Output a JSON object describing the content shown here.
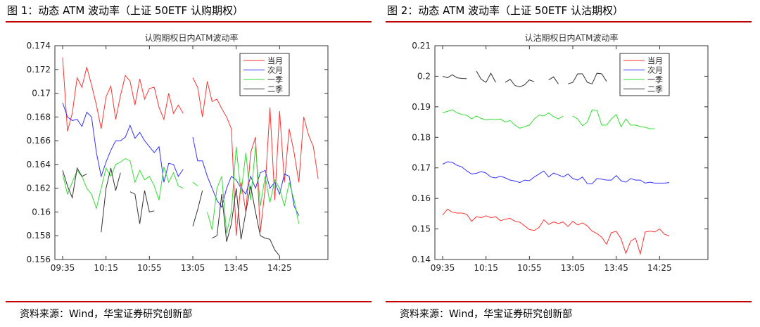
{
  "figures": [
    {
      "caption": "图 1：动态 ATM 波动率（上证 50ETF 认购期权）",
      "source": "资料来源：Wind，华宝证券研究创新部"
    },
    {
      "caption": "图 2：动态 ATM 波动率（上证 50ETF 认沽期权）",
      "source": "资料来源：Wind，华宝证券研究创新部"
    }
  ],
  "chart_data": [
    {
      "type": "line",
      "title": "认购期权日内ATM波动率",
      "xlabel": "",
      "ylabel": "",
      "x_ticks": [
        "09:35",
        "10:15",
        "10:55",
        "13:05",
        "13:45",
        "14:25"
      ],
      "x_tick_index": [
        0,
        9,
        18,
        27,
        36,
        45
      ],
      "x_count": 55,
      "ylim": [
        0.156,
        0.174
      ],
      "y_ticks": [
        0.156,
        0.158,
        0.16,
        0.162,
        0.164,
        0.166,
        0.168,
        0.17,
        0.172,
        0.174
      ],
      "y_tick_labels": [
        "0.156",
        "0.158",
        "0.16",
        "0.162",
        "0.164",
        "0.166",
        "0.168",
        "0.17",
        "0.172",
        "0.174"
      ],
      "legend_position": "top-right",
      "grid": false,
      "series": [
        {
          "name": "当月",
          "color": "#ff3333",
          "values": [
            0.173,
            0.1668,
            0.1683,
            0.1713,
            0.1705,
            0.1722,
            0.1707,
            0.169,
            0.167,
            0.1697,
            0.1706,
            0.1678,
            0.1698,
            0.1715,
            0.171,
            0.169,
            0.1712,
            0.1695,
            0.1704,
            0.1705,
            0.1688,
            0.1678,
            0.17,
            0.1683,
            0.169,
            0.1683,
            null,
            0.1713,
            0.1705,
            0.168,
            0.171,
            0.1693,
            0.1695,
            0.1687,
            0.168,
            0.167,
            0.158,
            0.1625,
            0.16,
            0.165,
            0.1663,
            0.1583,
            0.162,
            0.1688,
            0.161,
            0.1685,
            0.1625,
            0.167,
            0.165,
            0.1625,
            0.168,
            0.1665,
            0.1655,
            0.1628,
            null
          ]
        },
        {
          "name": "次月",
          "color": "#3333ff",
          "values": [
            0.1692,
            0.168,
            0.1677,
            0.1678,
            0.1672,
            0.1684,
            0.168,
            0.165,
            0.163,
            0.1642,
            0.1652,
            0.166,
            0.166,
            0.1663,
            0.1673,
            0.1662,
            0.1667,
            0.166,
            0.1655,
            0.165,
            0.1655,
            0.1625,
            0.1641,
            0.164,
            0.163,
            0.1636,
            null,
            0.1663,
            0.1643,
            0.1643,
            0.163,
            0.162,
            0.161,
            0.1604,
            0.162,
            0.163,
            0.1627,
            0.162,
            0.1615,
            0.163,
            0.162,
            0.1633,
            0.1635,
            0.162,
            0.1625,
            0.1615,
            0.1632,
            0.163,
            0.1605,
            0.1597,
            null,
            null,
            null,
            null,
            null
          ]
        },
        {
          "name": "一季",
          "color": "#33dd33",
          "values": [
            0.1632,
            0.1615,
            0.1625,
            0.1635,
            0.163,
            0.162,
            0.1615,
            0.1603,
            0.162,
            0.1637,
            0.163,
            0.164,
            0.1642,
            0.1645,
            0.1643,
            0.1625,
            0.1635,
            0.1627,
            0.163,
            0.1622,
            0.161,
            0.1638,
            0.1625,
            0.1633,
            0.1622,
            0.162,
            null,
            0.1625,
            0.1622,
            null,
            0.16,
            0.1585,
            0.162,
            0.163,
            0.1582,
            0.16,
            0.1655,
            0.1615,
            0.165,
            0.161,
            0.1655,
            0.1605,
            0.163,
            0.1608,
            0.1627,
            0.162,
            0.1605,
            0.1625,
            0.161,
            0.159,
            null,
            null,
            null,
            null,
            null
          ]
        },
        {
          "name": "二季",
          "color": "#333333",
          "values": [
            0.1635,
            0.1622,
            0.1612,
            0.1637,
            0.163,
            0.1632,
            null,
            null,
            0.1583,
            0.162,
            0.1637,
            0.1618,
            0.1633,
            null,
            0.1617,
            0.1615,
            0.159,
            0.1618,
            0.16,
            0.1601,
            null,
            null,
            null,
            null,
            null,
            null,
            null,
            0.1588,
            0.1602,
            0.1618,
            null,
            0.1578,
            0.158,
            0.1615,
            0.1575,
            0.159,
            0.162,
            0.1577,
            0.16,
            0.1622,
            0.16,
            0.158,
            0.1578,
            0.1577,
            0.1568,
            0.1563,
            null,
            null,
            null,
            null,
            null,
            null,
            null,
            null,
            null
          ]
        }
      ]
    },
    {
      "type": "line",
      "title": "认沽期权日内ATM波动率",
      "xlabel": "",
      "ylabel": "",
      "x_ticks": [
        "09:35",
        "10:15",
        "10:55",
        "13:05",
        "13:45",
        "14:25"
      ],
      "x_tick_index": [
        0,
        9,
        18,
        27,
        36,
        45
      ],
      "x_count": 55,
      "ylim": [
        0.14,
        0.21
      ],
      "y_ticks": [
        0.14,
        0.15,
        0.16,
        0.17,
        0.18,
        0.19,
        0.2,
        0.21
      ],
      "y_tick_labels": [
        "0.14",
        "0.15",
        "0.16",
        "0.17",
        "0.18",
        "0.19",
        "0.2",
        "0.21"
      ],
      "legend_position": "top-right",
      "grid": false,
      "series": [
        {
          "name": "当月",
          "color": "#ff3333",
          "values": [
            0.1545,
            0.1565,
            0.1555,
            0.1552,
            0.1552,
            0.1548,
            0.1525,
            0.154,
            0.1537,
            0.1543,
            0.1537,
            0.154,
            0.1527,
            0.1532,
            0.1535,
            0.1525,
            0.1522,
            0.151,
            0.1498,
            0.1495,
            0.1505,
            0.153,
            0.1515,
            0.1523,
            0.1518,
            0.1523,
            0.1508,
            0.1525,
            0.1513,
            0.152,
            0.151,
            0.1493,
            0.1485,
            0.1473,
            0.145,
            0.1488,
            0.1492,
            0.1468,
            0.142,
            0.146,
            0.147,
            0.1418,
            0.149,
            0.1493,
            0.149,
            0.15,
            0.1483,
            0.1477,
            null,
            null,
            null,
            null,
            null,
            null,
            null
          ]
        },
        {
          "name": "次月",
          "color": "#3333ff",
          "values": [
            0.1712,
            0.172,
            0.1718,
            0.1708,
            0.1703,
            0.169,
            0.168,
            0.1682,
            0.1688,
            0.1683,
            0.167,
            0.1667,
            0.1673,
            0.1667,
            0.166,
            0.1657,
            0.1652,
            0.166,
            0.1658,
            0.167,
            0.168,
            0.169,
            0.167,
            0.1683,
            0.1677,
            0.167,
            0.168,
            0.1665,
            0.166,
            0.167,
            0.1648,
            0.1648,
            0.1665,
            0.1663,
            0.166,
            0.166,
            0.1675,
            0.1658,
            0.1653,
            0.1665,
            0.166,
            0.166,
            0.165,
            0.1653,
            0.165,
            0.165,
            0.165,
            0.1652,
            null,
            null,
            null,
            null,
            null,
            null,
            null
          ]
        },
        {
          "name": "一季",
          "color": "#33dd33",
          "values": [
            0.188,
            0.1885,
            0.189,
            0.188,
            0.1875,
            0.1872,
            0.186,
            0.187,
            0.1862,
            0.1857,
            0.186,
            0.1858,
            0.186,
            0.185,
            0.1855,
            0.184,
            0.183,
            0.1835,
            0.184,
            0.186,
            0.1873,
            0.187,
            0.188,
            0.1868,
            0.186,
            0.187,
            null,
            0.187,
            0.186,
            0.1838,
            0.185,
            0.189,
            0.1888,
            0.184,
            0.184,
            0.186,
            0.1875,
            0.1835,
            0.186,
            0.184,
            0.184,
            0.1835,
            0.1833,
            0.1828,
            0.1828,
            null,
            null,
            null,
            null,
            null,
            null,
            null,
            null,
            null,
            null
          ]
        },
        {
          "name": "二季",
          "color": "#333333",
          "values": [
            0.2,
            0.1995,
            0.2005,
            0.1995,
            0.1993,
            0.1992,
            null,
            0.2017,
            0.199,
            0.198,
            0.201,
            0.198,
            null,
            0.198,
            0.199,
            0.197,
            0.1965,
            0.1972,
            0.1988,
            0.1982,
            null,
            null,
            0.1988,
            0.1998,
            0.1975,
            null,
            0.1975,
            0.198,
            0.2008,
            0.2008,
            0.198,
            0.1975,
            0.201,
            0.2008,
            0.1983,
            null,
            null,
            null,
            null,
            null,
            null,
            null,
            null,
            null,
            null,
            null,
            null,
            null,
            null,
            null,
            null,
            null,
            null,
            null,
            null
          ]
        }
      ]
    }
  ]
}
